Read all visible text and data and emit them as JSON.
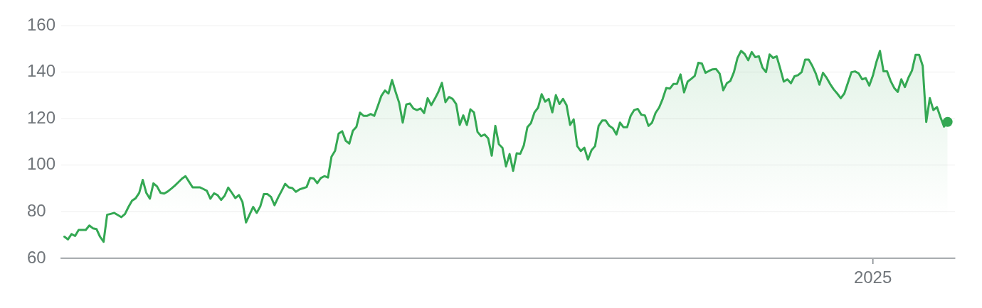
{
  "chart_data": {
    "type": "area",
    "categories": [
      null,
      null,
      null,
      null,
      null,
      null,
      null,
      null,
      null,
      null,
      null,
      null,
      null,
      null,
      null,
      null,
      null,
      null,
      null,
      null,
      null,
      null,
      null,
      null,
      null,
      null,
      null,
      null,
      null,
      null,
      null,
      null,
      null,
      null,
      null,
      null,
      null,
      null,
      null,
      null,
      null,
      null,
      null,
      null,
      null,
      null,
      null,
      null,
      null,
      null,
      null,
      null,
      null,
      null,
      null,
      null,
      null,
      null,
      null,
      null,
      null,
      null,
      null,
      null,
      null,
      null,
      null,
      null,
      null,
      null,
      null,
      null,
      null,
      null,
      null,
      null,
      null,
      null,
      null,
      null,
      null,
      null,
      null,
      null,
      null,
      null,
      null,
      null,
      null,
      null,
      null,
      null,
      null,
      null,
      null,
      null,
      null,
      null,
      null,
      null,
      null,
      null,
      null,
      null,
      null,
      null,
      null,
      null,
      null,
      null,
      null,
      null,
      null,
      null,
      null,
      null,
      null,
      null,
      null,
      null,
      null,
      null,
      null,
      null,
      null,
      null,
      null,
      null,
      null,
      null,
      null,
      null,
      null,
      null,
      null,
      null,
      null,
      null,
      null,
      null,
      null,
      null,
      null,
      null,
      null,
      null,
      null,
      null,
      null,
      null,
      null,
      null,
      null,
      null,
      null,
      null,
      null,
      null,
      null,
      null,
      null,
      null,
      null,
      null,
      null,
      null,
      null,
      null,
      null,
      null,
      null,
      null,
      null,
      null,
      null,
      null,
      null,
      null,
      null,
      null,
      null,
      null,
      null,
      null,
      null,
      null,
      null,
      null,
      null,
      null,
      null,
      null,
      null,
      null,
      null,
      null,
      null,
      null,
      null,
      null,
      null,
      null,
      null,
      null,
      null,
      null,
      null,
      null,
      null,
      null,
      null,
      null,
      null,
      null,
      null,
      null,
      null,
      null,
      null,
      null,
      null,
      null,
      null,
      null,
      null,
      null,
      null,
      "2025",
      null,
      null,
      null,
      null,
      null,
      null,
      null,
      null,
      null,
      null,
      null,
      null,
      null,
      null,
      null,
      null,
      null,
      null,
      null,
      null,
      null
    ],
    "series": [
      {
        "color": "#34a853",
        "values": [
          69.3,
          68.1,
          70.4,
          69.6,
          72.2,
          72.2,
          72.2,
          74.1,
          72.9,
          72.6,
          69.3,
          67.1,
          78.7,
          79.1,
          79.5,
          78.6,
          77.7,
          79.0,
          82.1,
          84.8,
          85.8,
          88.1,
          93.7,
          88.1,
          85.6,
          92.2,
          90.9,
          88.1,
          87.8,
          88.7,
          89.9,
          91.2,
          92.7,
          94.2,
          95.3,
          92.9,
          90.5,
          90.5,
          90.5,
          89.8,
          89.0,
          85.6,
          87.9,
          87.2,
          85.1,
          86.9,
          90.4,
          88.2,
          85.9,
          87.2,
          84.2,
          75.4,
          78.8,
          82.1,
          79.5,
          82.3,
          87.6,
          87.6,
          86.4,
          82.8,
          86.1,
          89.0,
          92.0,
          90.5,
          90.2,
          88.6,
          89.6,
          90.1,
          90.6,
          94.5,
          94.3,
          92.3,
          94.5,
          95.3,
          94.7,
          103.7,
          106.2,
          113.6,
          114.6,
          110.5,
          109.3,
          114.8,
          116.5,
          122.6,
          121.2,
          121.2,
          122.0,
          121.2,
          125.4,
          129.8,
          132.1,
          130.8,
          136.6,
          131.5,
          126.8,
          118.3,
          126.1,
          126.5,
          124.4,
          123.7,
          124.4,
          122.4,
          128.8,
          125.8,
          128.5,
          131.5,
          135.4,
          127.1,
          129.3,
          128.5,
          126.3,
          117.3,
          121.4,
          117.3,
          124.0,
          122.7,
          114.3,
          112.5,
          113.2,
          111.5,
          104.1,
          116.9,
          109.0,
          107.5,
          99.5,
          104.8,
          97.6,
          105.1,
          104.9,
          108.5,
          116.3,
          118.1,
          122.7,
          124.7,
          130.5,
          127.3,
          128.5,
          122.7,
          130.1,
          126.3,
          128.5,
          125.8,
          117.3,
          119.7,
          108.2,
          106.1,
          107.5,
          102.4,
          106.4,
          108.2,
          116.9,
          119.2,
          119.2,
          116.9,
          115.9,
          113.2,
          118.3,
          116.3,
          116.3,
          121.2,
          123.7,
          124.2,
          121.7,
          121.4,
          116.9,
          118.3,
          122.5,
          124.8,
          128.5,
          133.2,
          132.9,
          134.9,
          134.9,
          139.0,
          131.3,
          135.9,
          137.1,
          138.4,
          144.0,
          143.7,
          139.7,
          140.5,
          141.2,
          141.3,
          139.3,
          132.2,
          135.2,
          136.2,
          140.0,
          146.1,
          149.1,
          147.8,
          145.1,
          148.6,
          146.4,
          146.8,
          142.0,
          140.0,
          147.6,
          146.1,
          146.8,
          141.5,
          135.9,
          136.9,
          135.2,
          138.2,
          138.7,
          140.0,
          145.4,
          145.4,
          142.7,
          139.3,
          134.6,
          139.7,
          137.6,
          134.9,
          132.6,
          130.8,
          128.8,
          130.8,
          135.4,
          140.0,
          140.3,
          139.5,
          136.9,
          137.4,
          134.2,
          138.4,
          144.3,
          149.1,
          140.3,
          140.3,
          136.2,
          133.2,
          131.5,
          136.9,
          133.6,
          137.6,
          140.7,
          147.4,
          147.4,
          142.7,
          118.6,
          128.8,
          123.7,
          125.0,
          120.6,
          116.6,
          118.6
        ]
      },
      {
        "type": "scatter",
        "color": "#34a853",
        "marker": "circle",
        "values": [
          null,
          null,
          null,
          null,
          null,
          null,
          null,
          null,
          null,
          null,
          null,
          null,
          null,
          null,
          null,
          null,
          null,
          null,
          null,
          null,
          null,
          null,
          null,
          null,
          null,
          null,
          null,
          null,
          null,
          null,
          null,
          null,
          null,
          null,
          null,
          null,
          null,
          null,
          null,
          null,
          null,
          null,
          null,
          null,
          null,
          null,
          null,
          null,
          null,
          null,
          null,
          null,
          null,
          null,
          null,
          null,
          null,
          null,
          null,
          null,
          null,
          null,
          null,
          null,
          null,
          null,
          null,
          null,
          null,
          null,
          null,
          null,
          null,
          null,
          null,
          null,
          null,
          null,
          null,
          null,
          null,
          null,
          null,
          null,
          null,
          null,
          null,
          null,
          null,
          null,
          null,
          null,
          null,
          null,
          null,
          null,
          null,
          null,
          null,
          null,
          null,
          null,
          null,
          null,
          null,
          null,
          null,
          null,
          null,
          null,
          null,
          null,
          null,
          null,
          null,
          null,
          null,
          null,
          null,
          null,
          null,
          null,
          null,
          null,
          null,
          null,
          null,
          null,
          null,
          null,
          null,
          null,
          null,
          null,
          null,
          null,
          null,
          null,
          null,
          null,
          null,
          null,
          null,
          null,
          null,
          null,
          null,
          null,
          null,
          null,
          null,
          null,
          null,
          null,
          null,
          null,
          null,
          null,
          null,
          null,
          null,
          null,
          null,
          null,
          null,
          null,
          null,
          null,
          null,
          null,
          null,
          null,
          null,
          null,
          null,
          null,
          null,
          null,
          null,
          null,
          null,
          null,
          null,
          null,
          null,
          null,
          null,
          null,
          null,
          null,
          null,
          null,
          null,
          null,
          null,
          null,
          null,
          null,
          null,
          null,
          null,
          null,
          null,
          null,
          null,
          null,
          null,
          null,
          null,
          null,
          null,
          null,
          null,
          null,
          null,
          null,
          null,
          null,
          null,
          null,
          null,
          null,
          null,
          null,
          null,
          null,
          null,
          null,
          null,
          null,
          null,
          null,
          null,
          null,
          null,
          null,
          null,
          null,
          null,
          null,
          null,
          null,
          null,
          null,
          null,
          null,
          null,
          null,
          118.6
        ]
      }
    ],
    "ylim": [
      60,
      160
    ],
    "yticks": [
      60,
      80,
      100,
      120,
      140,
      160
    ],
    "grid": "y"
  }
}
